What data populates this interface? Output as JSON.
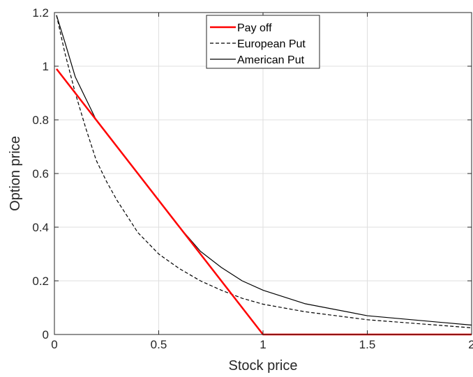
{
  "chart_data": {
    "type": "line",
    "title": "",
    "xlabel": "Stock price",
    "ylabel": "Option price",
    "xlim": [
      0,
      2
    ],
    "ylim": [
      0,
      1.2
    ],
    "xticks": [
      0,
      0.5,
      1,
      1.5,
      2
    ],
    "xtick_labels": [
      "0",
      "0.5",
      "1",
      "1.5",
      "2"
    ],
    "yticks": [
      0,
      0.2,
      0.4,
      0.6,
      0.8,
      1,
      1.2
    ],
    "ytick_labels": [
      "0",
      "0.2",
      "0.4",
      "0.6",
      "0.8",
      "1",
      "1.2"
    ],
    "grid": true,
    "legend_position": "top-center",
    "series": [
      {
        "name": "Pay off",
        "color": "#ff0000",
        "style": "solid",
        "x": [
          0.01,
          1,
          2
        ],
        "y": [
          0.99,
          0,
          0
        ]
      },
      {
        "name": "European Put",
        "color": "#000000",
        "style": "dashed",
        "x": [
          0.01,
          0.05,
          0.1,
          0.15,
          0.2,
          0.25,
          0.3,
          0.4,
          0.5,
          0.6,
          0.7,
          0.8,
          0.9,
          1.0,
          1.2,
          1.5,
          2.0
        ],
        "y": [
          1.19,
          1.05,
          0.9,
          0.77,
          0.65,
          0.57,
          0.5,
          0.38,
          0.3,
          0.245,
          0.2,
          0.165,
          0.135,
          0.113,
          0.085,
          0.055,
          0.025
        ]
      },
      {
        "name": "American Put",
        "color": "#000000",
        "style": "solid",
        "x": [
          0.01,
          0.05,
          0.1,
          0.15,
          0.2,
          0.3,
          0.4,
          0.5,
          0.6,
          0.7,
          0.8,
          0.9,
          1.0,
          1.2,
          1.5,
          2.0
        ],
        "y": [
          1.19,
          1.09,
          0.96,
          0.88,
          0.8,
          0.7,
          0.6,
          0.5,
          0.4,
          0.31,
          0.25,
          0.2,
          0.165,
          0.115,
          0.07,
          0.035
        ]
      }
    ]
  }
}
